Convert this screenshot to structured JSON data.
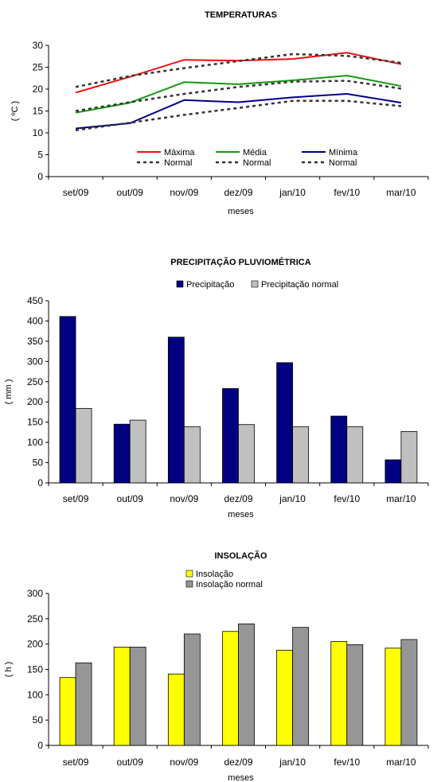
{
  "chart_data": [
    {
      "type": "line",
      "title": "TEMPERATURAS",
      "xlabel": "meses",
      "ylabel": "( ºC )",
      "ylim": [
        0,
        30
      ],
      "yticks": [
        0,
        5,
        10,
        15,
        20,
        25,
        30
      ],
      "categories": [
        "set/09",
        "out/09",
        "nov/09",
        "dez/09",
        "jan/10",
        "fev/10",
        "mar/10"
      ],
      "series": [
        {
          "name": "Máxima",
          "color": "#ee1111",
          "style": "solid",
          "values": [
            19.2,
            22.8,
            26.7,
            26.5,
            26.9,
            28.3,
            25.7
          ]
        },
        {
          "name": "Normal",
          "color": "#333333",
          "style": "dotted",
          "values": [
            20.5,
            23.0,
            24.8,
            26.4,
            28.0,
            27.6,
            26.0
          ]
        },
        {
          "name": "Média",
          "color": "#119911",
          "style": "solid",
          "values": [
            14.6,
            16.9,
            21.6,
            21.1,
            22.0,
            23.1,
            20.7
          ]
        },
        {
          "name": "Normal",
          "color": "#333333",
          "style": "dotted",
          "values": [
            15.0,
            17.0,
            18.9,
            20.5,
            21.7,
            21.9,
            20.1
          ]
        },
        {
          "name": "Mínima",
          "color": "#000088",
          "style": "solid",
          "values": [
            11.0,
            12.2,
            17.5,
            17.0,
            18.1,
            18.9,
            16.9
          ]
        },
        {
          "name": "Normal",
          "color": "#333333",
          "style": "dotted",
          "values": [
            10.6,
            12.3,
            14.1,
            15.7,
            17.3,
            17.3,
            16.1
          ]
        }
      ],
      "legend": "inside-bottom-right"
    },
    {
      "type": "bar",
      "title": "PRECIPITAÇÃO PLUVIOMÉTRICA",
      "xlabel": "meses",
      "ylabel": "( mm )",
      "ylim": [
        0,
        450
      ],
      "yticks": [
        0,
        50,
        100,
        150,
        200,
        250,
        300,
        350,
        400,
        450
      ],
      "categories": [
        "set/09",
        "out/09",
        "nov/09",
        "dez/09",
        "jan/10",
        "fev/10",
        "mar/10"
      ],
      "series": [
        {
          "name": "Precipitação",
          "color": "#000080",
          "values": [
            411,
            145,
            360,
            233,
            297,
            165,
            57
          ]
        },
        {
          "name": "Precipitação normal",
          "color": "#c0c0c0",
          "values": [
            184,
            155,
            139,
            144,
            139,
            139,
            127
          ]
        }
      ],
      "legend": "top"
    },
    {
      "type": "bar",
      "title": "INSOLAÇÃO",
      "xlabel": "meses",
      "ylabel": "( h )",
      "ylim": [
        0,
        300
      ],
      "yticks": [
        0,
        50,
        100,
        150,
        200,
        250,
        300
      ],
      "categories": [
        "set/09",
        "out/09",
        "nov/09",
        "dez/09",
        "jan/10",
        "fev/10",
        "mar/10"
      ],
      "series": [
        {
          "name": "Insolação",
          "color": "#ffff00",
          "values": [
            134,
            194,
            141,
            225,
            188,
            205,
            192
          ]
        },
        {
          "name": "Insolação normal",
          "color": "#969696",
          "values": [
            163,
            194,
            220,
            240,
            233,
            199,
            209
          ]
        }
      ],
      "legend": "top"
    }
  ]
}
